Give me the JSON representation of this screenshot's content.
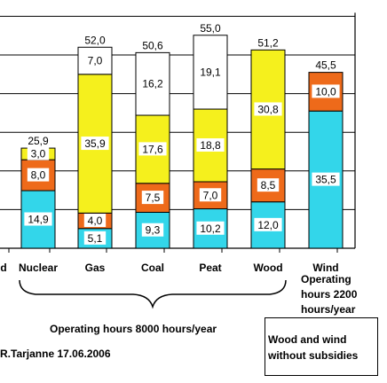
{
  "chart_data": {
    "type": "bar",
    "stacked": true,
    "categories": [
      "d",
      "Nuclear",
      "Gas",
      "Coal",
      "Peat",
      "Wood",
      "Wind"
    ],
    "visible_categories": [
      "Nuclear",
      "Gas",
      "Coal",
      "Peat",
      "Wood",
      "Wind"
    ],
    "segments": [
      {
        "category": "Nuclear",
        "values": [
          14.9,
          8.0,
          3.0
        ],
        "labels": [
          "14,9",
          "8,0",
          "3,0"
        ],
        "total": "25,9"
      },
      {
        "category": "Gas",
        "values": [
          5.1,
          4.0,
          35.9,
          7.0
        ],
        "labels": [
          "5,1",
          "4,0",
          "35,9",
          "7,0"
        ],
        "total": "52,0"
      },
      {
        "category": "Coal",
        "values": [
          9.3,
          7.5,
          17.6,
          16.2
        ],
        "labels": [
          "9,3",
          "7,5",
          "17,6",
          "16,2"
        ],
        "total": "50,6"
      },
      {
        "category": "Peat",
        "values": [
          10.2,
          7.0,
          18.8,
          19.1
        ],
        "labels": [
          "10,2",
          "7,0",
          "18,8",
          "19,1"
        ],
        "total": "55,0"
      },
      {
        "category": "Wood",
        "values": [
          12.0,
          8.5,
          30.8
        ],
        "labels": [
          "12,0",
          "8,5",
          "30,8"
        ],
        "total": "51,2"
      },
      {
        "category": "Wind",
        "values": [
          35.5,
          10.0
        ],
        "labels": [
          "35,5",
          "10,0"
        ],
        "total": "45,5"
      }
    ],
    "segment_colors": [
      "#33d6ea",
      "#ee6a1a",
      "#f5f01d",
      "#ffffff"
    ],
    "ylim": [
      0,
      60
    ],
    "grid": true,
    "annotations": {
      "wind_note": "Operating hours 2200 hours/year",
      "operating_hours": "Operating hours 8000 hours/year",
      "author": "R.Tarjanne 17.06.2006",
      "box_line1": "Wood and wind",
      "box_line2": "without subsidies"
    }
  }
}
